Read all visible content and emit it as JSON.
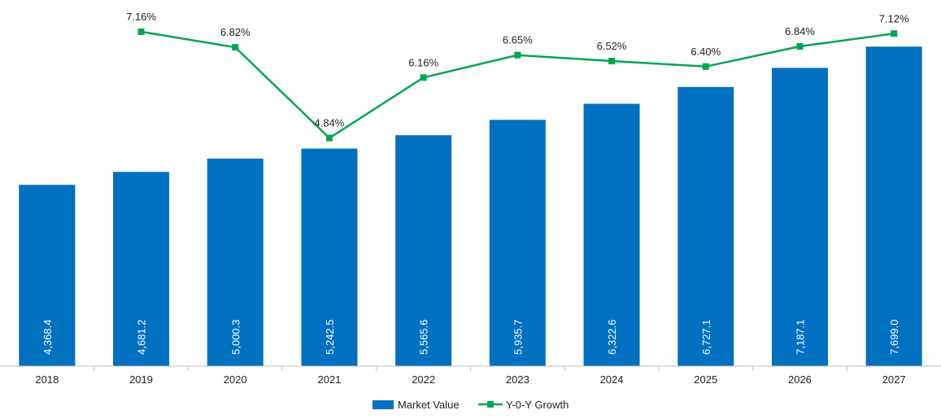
{
  "colors": {
    "bar": "#0070c0",
    "line": "#00a651",
    "axis": "#bfbfbf"
  },
  "chart_data": {
    "type": "bar",
    "categories": [
      "2018",
      "2019",
      "2020",
      "2021",
      "2022",
      "2023",
      "2024",
      "2025",
      "2026",
      "2027"
    ],
    "series": [
      {
        "name": "Market Value",
        "kind": "bar",
        "values": [
          4368.4,
          4681.2,
          5000.3,
          5242.5,
          5565.6,
          5935.7,
          6322.6,
          6727.1,
          7187.1,
          7699.0
        ],
        "labels": [
          "4,368.4",
          "4,681.2",
          "5,000.3",
          "5,242.5",
          "5,565.6",
          "5,935.7",
          "6,322.6",
          "6,727.1",
          "7,187.1",
          "7,699.0"
        ]
      },
      {
        "name": "Y-0-Y Growth",
        "kind": "line",
        "values": [
          null,
          7.16,
          6.82,
          4.84,
          6.16,
          6.65,
          6.52,
          6.4,
          6.84,
          7.12
        ],
        "labels": [
          "",
          "7.16%",
          "6.82%",
          "4.84%",
          "6.16%",
          "6.65%",
          "6.52%",
          "6.40%",
          "6.84%",
          "7.12%"
        ]
      }
    ],
    "y_bar_range": [
      0,
      8000
    ],
    "y_line_range": [
      0,
      8
    ],
    "title": "",
    "xlabel": "",
    "ylabel": "",
    "legend": [
      "Market Value",
      "Y-0-Y Growth"
    ],
    "legend_position": "bottom"
  }
}
